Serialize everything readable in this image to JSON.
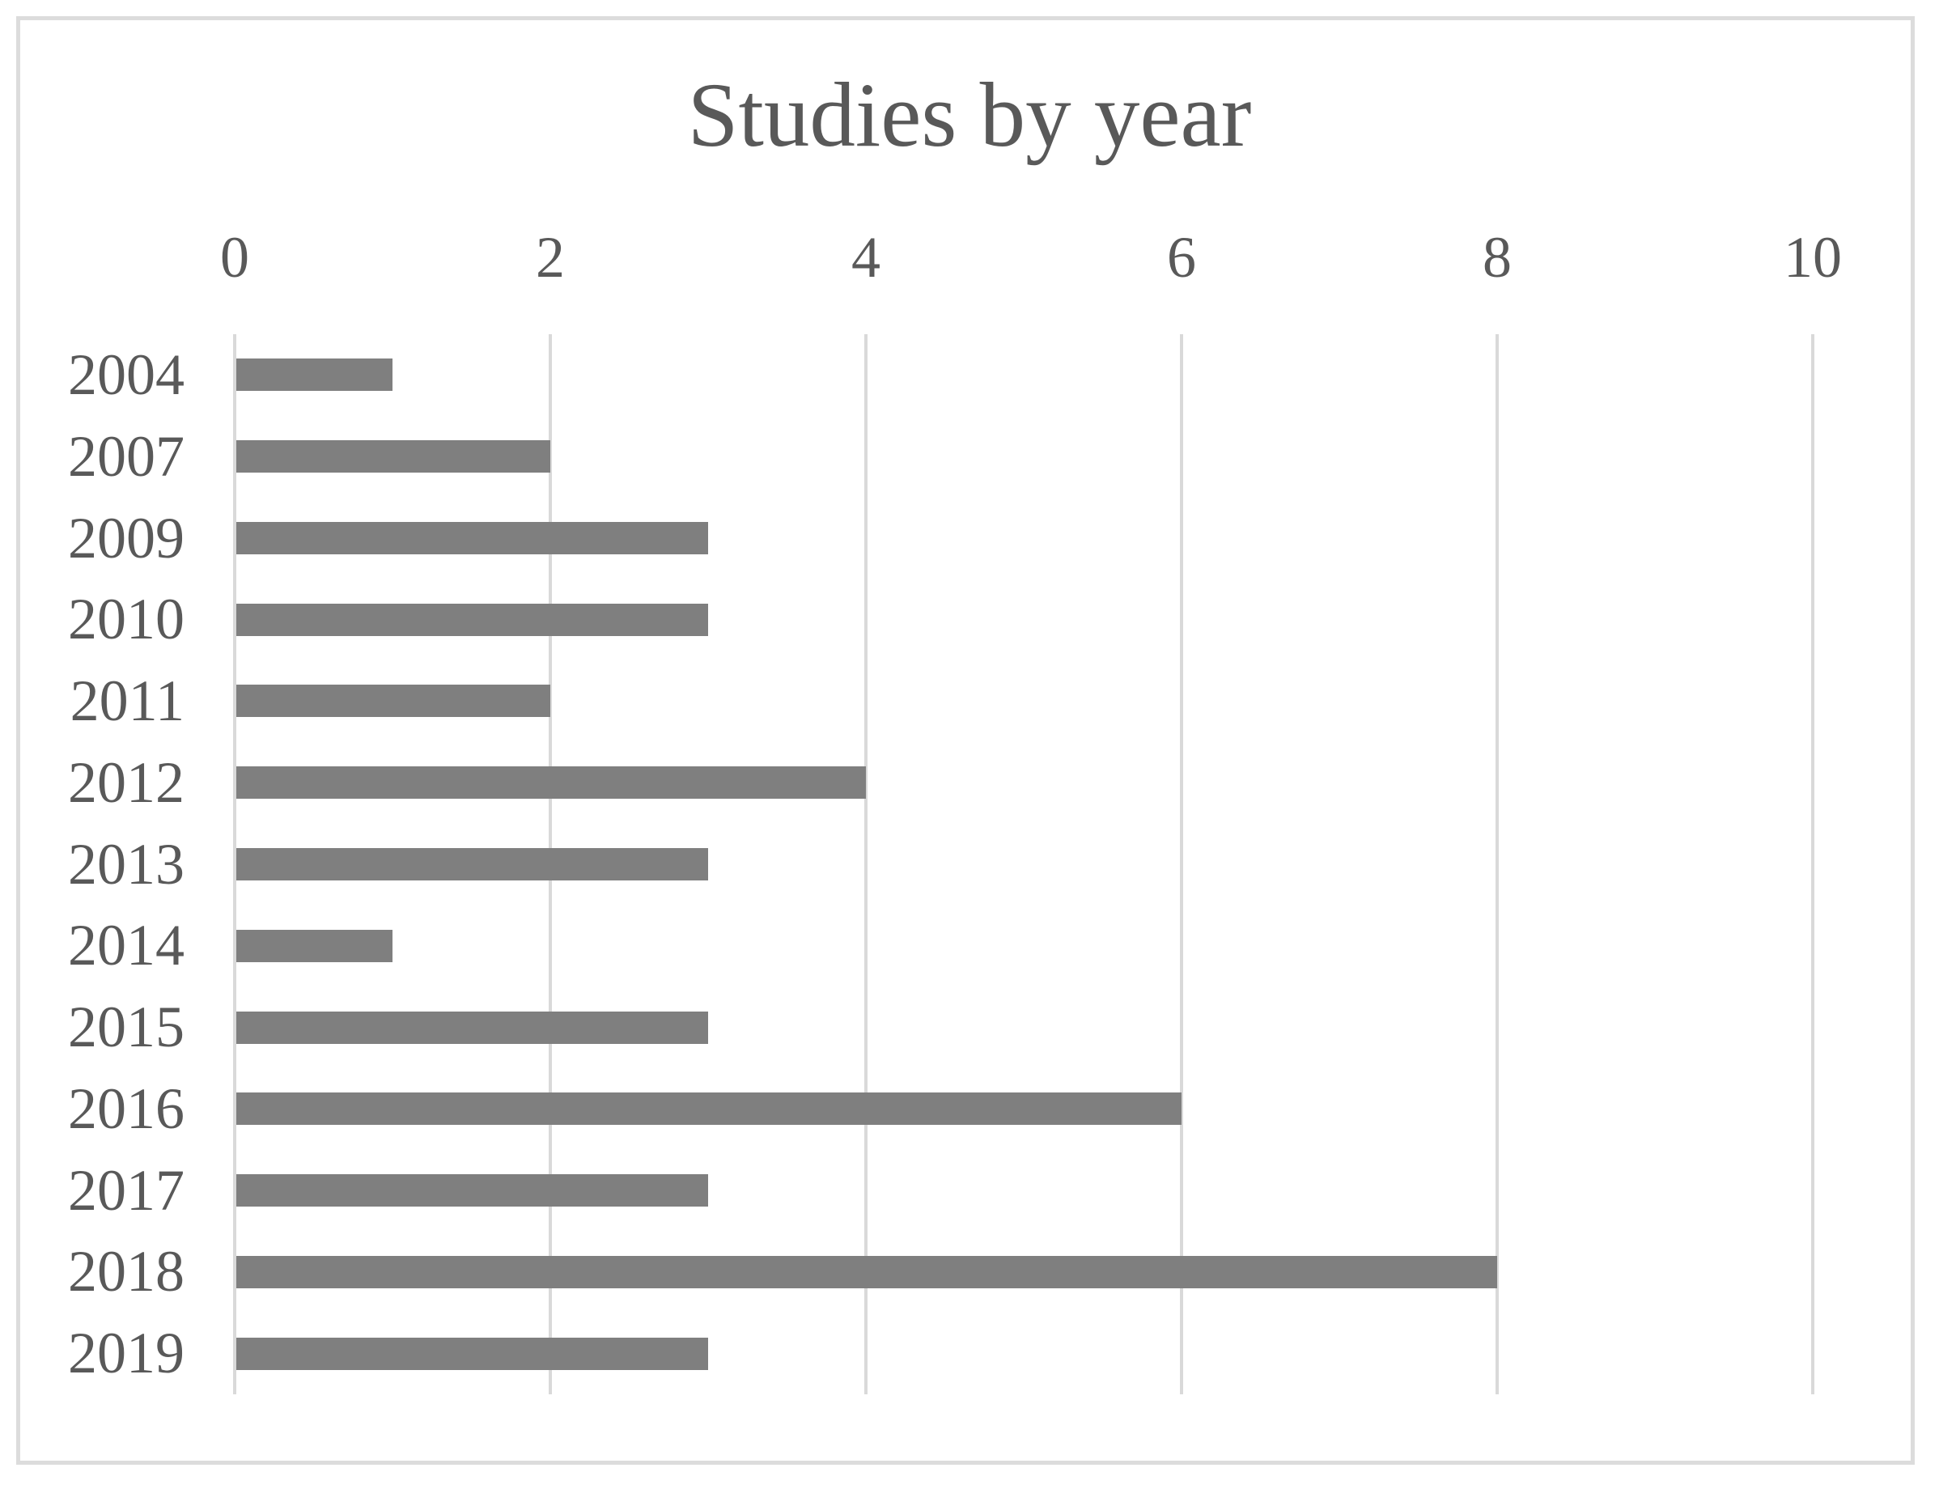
{
  "title": "Studies by year",
  "chart_data": {
    "type": "bar",
    "orientation": "horizontal",
    "title": "Studies by year",
    "categories": [
      "2004",
      "2007",
      "2009",
      "2010",
      "2011",
      "2012",
      "2013",
      "2014",
      "2015",
      "2016",
      "2017",
      "2018",
      "2019"
    ],
    "values": [
      1,
      2,
      3,
      3,
      2,
      4,
      3,
      1,
      3,
      6,
      3,
      8,
      3
    ],
    "xlabel": "",
    "ylabel": "",
    "xlim": [
      0,
      10
    ],
    "x_ticks": [
      0,
      2,
      4,
      6,
      8,
      10
    ],
    "grid": "vertical-gridlines-on",
    "legend": "none",
    "bar_color": "#7f7f7f",
    "gridline_color": "#d9d9d9",
    "axis_line_color": "#d9d9d9",
    "text_color": "#595959",
    "border_color": "#dcdcdc"
  }
}
